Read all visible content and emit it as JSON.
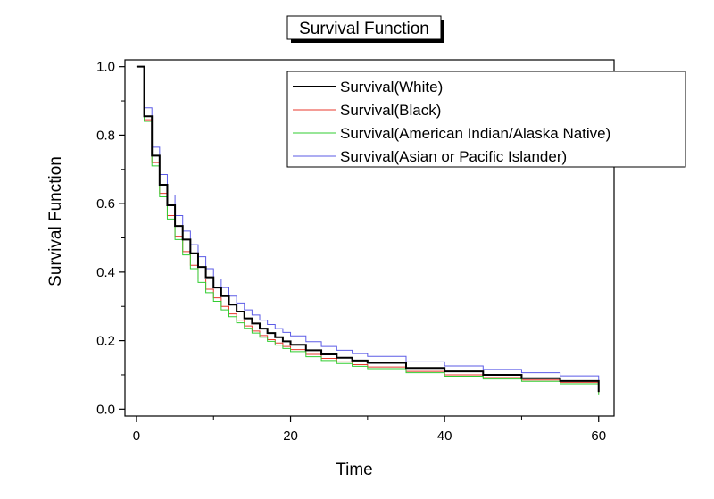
{
  "chart_data": {
    "type": "line",
    "title": "Survival Function",
    "xlabel": "Time",
    "ylabel": "Survival Function",
    "xlim": [
      -1.5,
      62
    ],
    "ylim": [
      -0.02,
      1.02
    ],
    "xticks": [
      0,
      20,
      40,
      60
    ],
    "xtick_labels": [
      "0",
      "20",
      "40",
      "60"
    ],
    "yticks": [
      0.0,
      0.2,
      0.4,
      0.6,
      0.8,
      1.0
    ],
    "ytick_labels": [
      "0.0",
      "0.2",
      "0.4",
      "0.6",
      "0.8",
      "1.0"
    ],
    "legend_position": "top-right",
    "grid": false,
    "x": [
      0,
      1,
      2,
      3,
      4,
      5,
      6,
      7,
      8,
      9,
      10,
      11,
      12,
      13,
      14,
      15,
      16,
      17,
      18,
      19,
      20,
      22,
      24,
      26,
      28,
      30,
      35,
      40,
      45,
      50,
      55,
      60
    ],
    "series": [
      {
        "name": "Survival(White)",
        "color": "#000000",
        "width": 2,
        "values": [
          1.0,
          0.855,
          0.74,
          0.655,
          0.595,
          0.535,
          0.495,
          0.455,
          0.415,
          0.385,
          0.355,
          0.33,
          0.305,
          0.285,
          0.265,
          0.25,
          0.235,
          0.222,
          0.21,
          0.198,
          0.188,
          0.172,
          0.16,
          0.15,
          0.142,
          0.135,
          0.12,
          0.11,
          0.1,
          0.09,
          0.082,
          0.075
        ]
      },
      {
        "name": "Survival(Black)",
        "color": "#e8382e",
        "width": 1,
        "values": [
          1.0,
          0.845,
          0.72,
          0.63,
          0.565,
          0.505,
          0.46,
          0.42,
          0.38,
          0.35,
          0.325,
          0.3,
          0.278,
          0.26,
          0.243,
          0.228,
          0.215,
          0.203,
          0.193,
          0.183,
          0.174,
          0.16,
          0.148,
          0.138,
          0.13,
          0.123,
          0.11,
          0.1,
          0.092,
          0.085,
          0.078,
          0.072
        ]
      },
      {
        "name": "Survival(American Indian/Alaska Native)",
        "color": "#32cd32",
        "width": 1,
        "values": [
          1.0,
          0.84,
          0.71,
          0.62,
          0.555,
          0.495,
          0.45,
          0.41,
          0.37,
          0.34,
          0.315,
          0.29,
          0.27,
          0.252,
          0.236,
          0.222,
          0.21,
          0.198,
          0.187,
          0.177,
          0.168,
          0.153,
          0.142,
          0.133,
          0.125,
          0.118,
          0.106,
          0.096,
          0.088,
          0.081,
          0.074,
          0.068
        ]
      },
      {
        "name": "Survival(Asian or Pacific Islander)",
        "color": "#5b5be6",
        "width": 1,
        "values": [
          1.0,
          0.88,
          0.765,
          0.685,
          0.625,
          0.565,
          0.52,
          0.48,
          0.445,
          0.41,
          0.38,
          0.355,
          0.33,
          0.31,
          0.29,
          0.275,
          0.26,
          0.247,
          0.235,
          0.224,
          0.214,
          0.197,
          0.183,
          0.172,
          0.162,
          0.154,
          0.138,
          0.126,
          0.116,
          0.106,
          0.097,
          0.09
        ]
      }
    ]
  }
}
